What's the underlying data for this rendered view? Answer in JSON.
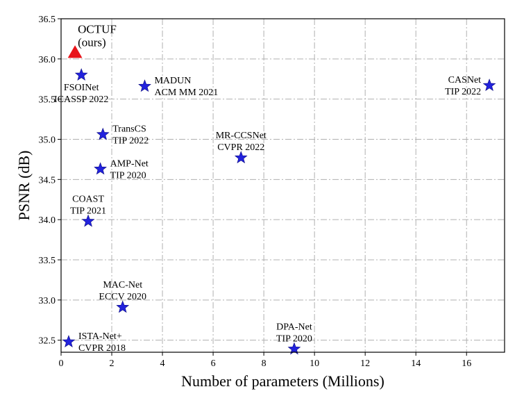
{
  "chart_data": {
    "type": "scatter",
    "xlabel": "Number of parameters (Millions)",
    "ylabel": "PSNR (dB)",
    "xlim": [
      0,
      17.5
    ],
    "ylim": [
      32.35,
      36.5
    ],
    "xticks": [
      0,
      2,
      4,
      6,
      8,
      10,
      12,
      14,
      16
    ],
    "yticks": [
      32.5,
      33.0,
      33.5,
      34.0,
      34.5,
      35.0,
      35.5,
      36.0,
      36.5
    ],
    "xtick_labels": [
      "0",
      "2",
      "4",
      "6",
      "8",
      "10",
      "12",
      "14",
      "16"
    ],
    "ytick_labels": [
      "32.5",
      "33.0",
      "33.5",
      "34.0",
      "34.5",
      "35.0",
      "35.5",
      "36.0",
      "36.5"
    ],
    "grid": true,
    "colors": {
      "ours": "#e8141a",
      "others": "#2222dd"
    },
    "points": [
      {
        "x": 0.55,
        "y": 36.08,
        "marker": "triangle",
        "group": "ours",
        "label": [
          "OCTUF",
          "(ours)"
        ],
        "label_pos": "above-right"
      },
      {
        "x": 0.8,
        "y": 35.8,
        "marker": "star",
        "group": "others",
        "label": [
          "FSOINet",
          "ICASSP 2022"
        ],
        "label_pos": "below"
      },
      {
        "x": 3.3,
        "y": 35.66,
        "marker": "star",
        "group": "others",
        "label": [
          "MADUN",
          "ACM MM 2021"
        ],
        "label_pos": "right"
      },
      {
        "x": 16.9,
        "y": 35.67,
        "marker": "star",
        "group": "others",
        "label": [
          "CASNet",
          "TIP 2022"
        ],
        "label_pos": "left"
      },
      {
        "x": 1.65,
        "y": 35.06,
        "marker": "star",
        "group": "others",
        "label": [
          "TransCS",
          "TIP 2022"
        ],
        "label_pos": "right"
      },
      {
        "x": 7.1,
        "y": 34.77,
        "marker": "star",
        "group": "others",
        "label": [
          "MR-CCSNet",
          "CVPR 2022"
        ],
        "label_pos": "above"
      },
      {
        "x": 1.55,
        "y": 34.63,
        "marker": "star",
        "group": "others",
        "label": [
          "AMP-Net",
          "TIP 2020"
        ],
        "label_pos": "right"
      },
      {
        "x": 1.07,
        "y": 33.98,
        "marker": "star",
        "group": "others",
        "label": [
          "COAST",
          "TIP 2021"
        ],
        "label_pos": "above"
      },
      {
        "x": 2.43,
        "y": 32.91,
        "marker": "star",
        "group": "others",
        "label": [
          "MAC-Net",
          "ECCV 2020"
        ],
        "label_pos": "above"
      },
      {
        "x": 0.3,
        "y": 32.48,
        "marker": "star",
        "group": "others",
        "label": [
          "ISTA-Net+",
          "CVPR 2018"
        ],
        "label_pos": "right"
      },
      {
        "x": 9.2,
        "y": 32.39,
        "marker": "star",
        "group": "others",
        "label": [
          "DPA-Net",
          "TIP 2020"
        ],
        "label_pos": "above"
      }
    ]
  }
}
